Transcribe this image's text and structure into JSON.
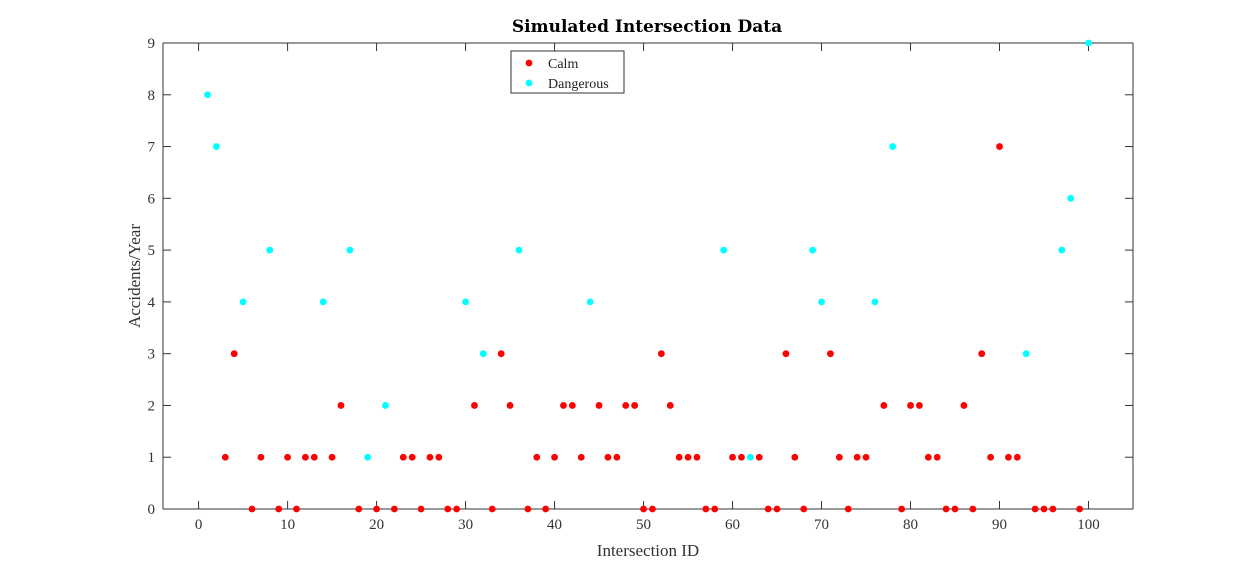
{
  "chart_data": {
    "type": "scatter",
    "title": "Simulated Intersection Data",
    "xlabel": "Intersection ID",
    "ylabel": "Accidents/Year",
    "xlim": [
      -4,
      105
    ],
    "ylim": [
      0,
      9
    ],
    "xticks": [
      0,
      10,
      20,
      30,
      40,
      50,
      60,
      70,
      80,
      90,
      100
    ],
    "yticks": [
      0,
      1,
      2,
      3,
      4,
      5,
      6,
      7,
      8,
      9
    ],
    "legend_position": "top-center",
    "series": [
      {
        "name": "Calm",
        "color": "#ff0000",
        "points": [
          [
            3,
            1
          ],
          [
            4,
            3
          ],
          [
            6,
            0
          ],
          [
            7,
            1
          ],
          [
            9,
            0
          ],
          [
            10,
            1
          ],
          [
            11,
            0
          ],
          [
            12,
            1
          ],
          [
            13,
            1
          ],
          [
            15,
            1
          ],
          [
            16,
            2
          ],
          [
            18,
            0
          ],
          [
            20,
            0
          ],
          [
            22,
            0
          ],
          [
            23,
            1
          ],
          [
            24,
            1
          ],
          [
            25,
            0
          ],
          [
            26,
            1
          ],
          [
            27,
            1
          ],
          [
            28,
            0
          ],
          [
            29,
            0
          ],
          [
            31,
            2
          ],
          [
            33,
            0
          ],
          [
            34,
            3
          ],
          [
            35,
            2
          ],
          [
            37,
            0
          ],
          [
            38,
            1
          ],
          [
            39,
            0
          ],
          [
            40,
            1
          ],
          [
            41,
            2
          ],
          [
            42,
            2
          ],
          [
            43,
            1
          ],
          [
            45,
            2
          ],
          [
            46,
            1
          ],
          [
            47,
            1
          ],
          [
            48,
            2
          ],
          [
            49,
            2
          ],
          [
            50,
            0
          ],
          [
            51,
            0
          ],
          [
            52,
            3
          ],
          [
            53,
            2
          ],
          [
            54,
            1
          ],
          [
            55,
            1
          ],
          [
            56,
            1
          ],
          [
            57,
            0
          ],
          [
            58,
            0
          ],
          [
            60,
            1
          ],
          [
            61,
            1
          ],
          [
            63,
            1
          ],
          [
            64,
            0
          ],
          [
            65,
            0
          ],
          [
            66,
            3
          ],
          [
            67,
            1
          ],
          [
            68,
            0
          ],
          [
            71,
            3
          ],
          [
            72,
            1
          ],
          [
            73,
            0
          ],
          [
            74,
            1
          ],
          [
            75,
            1
          ],
          [
            77,
            2
          ],
          [
            79,
            0
          ],
          [
            80,
            2
          ],
          [
            81,
            2
          ],
          [
            82,
            1
          ],
          [
            83,
            1
          ],
          [
            84,
            0
          ],
          [
            85,
            0
          ],
          [
            86,
            2
          ],
          [
            87,
            0
          ],
          [
            88,
            3
          ],
          [
            89,
            1
          ],
          [
            90,
            7
          ],
          [
            91,
            1
          ],
          [
            92,
            1
          ],
          [
            94,
            0
          ],
          [
            95,
            0
          ],
          [
            96,
            0
          ],
          [
            99,
            0
          ]
        ]
      },
      {
        "name": "Dangerous",
        "color": "#00ffff",
        "points": [
          [
            1,
            8
          ],
          [
            2,
            7
          ],
          [
            5,
            4
          ],
          [
            8,
            5
          ],
          [
            14,
            4
          ],
          [
            17,
            5
          ],
          [
            19,
            1
          ],
          [
            21,
            2
          ],
          [
            30,
            4
          ],
          [
            32,
            3
          ],
          [
            36,
            5
          ],
          [
            44,
            4
          ],
          [
            59,
            5
          ],
          [
            62,
            1
          ],
          [
            69,
            5
          ],
          [
            70,
            4
          ],
          [
            76,
            4
          ],
          [
            78,
            7
          ],
          [
            93,
            3
          ],
          [
            97,
            5
          ],
          [
            98,
            6
          ],
          [
            100,
            9
          ]
        ]
      }
    ]
  }
}
